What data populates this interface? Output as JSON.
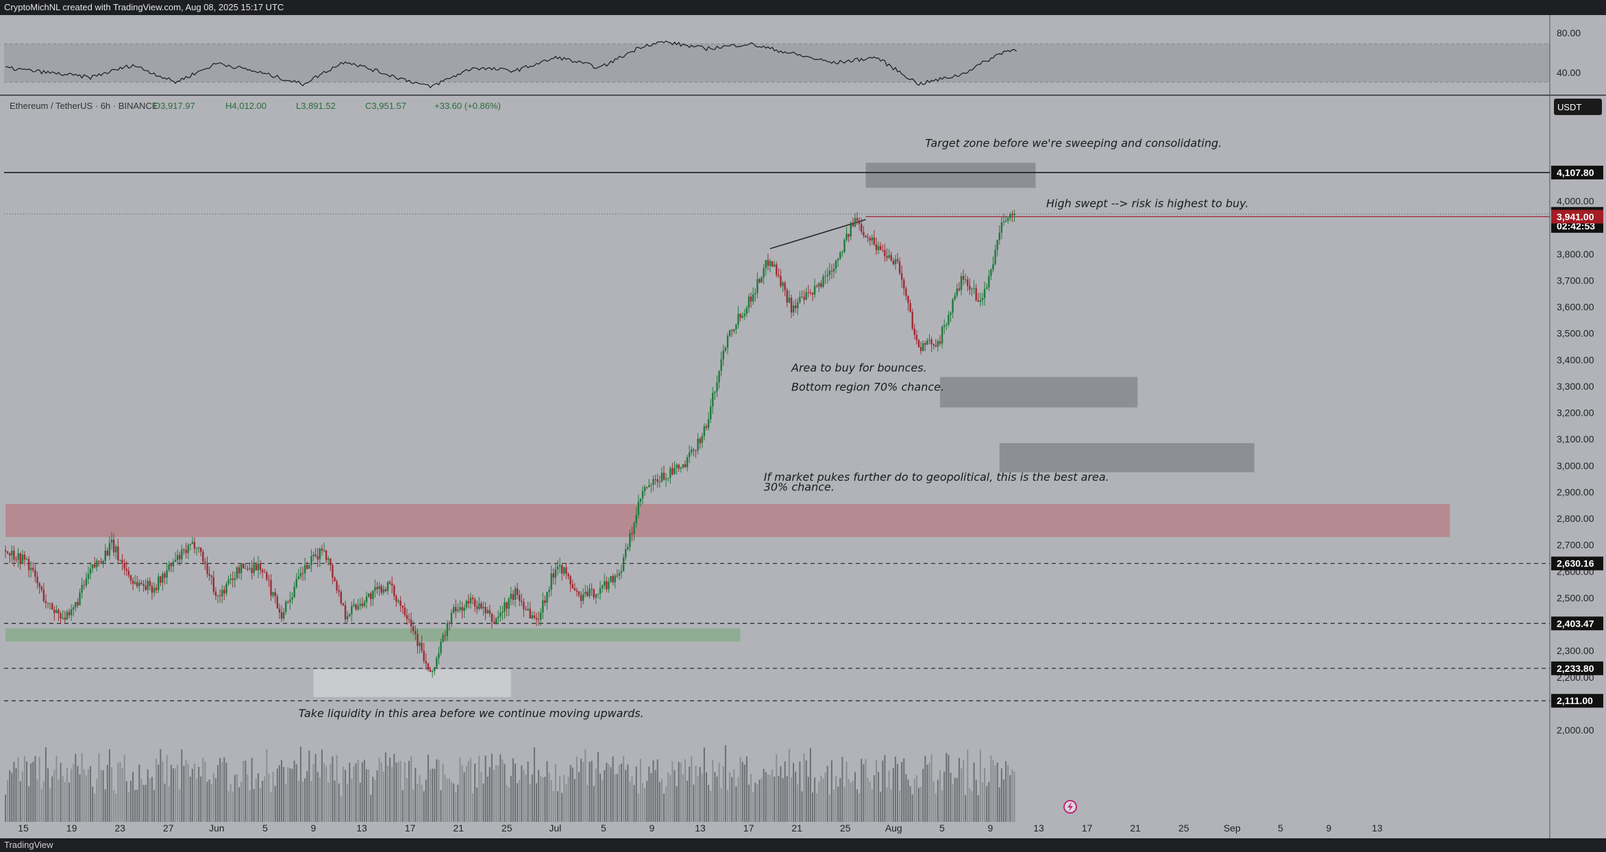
{
  "header": {
    "text": "CryptoMichNL created with TradingView.com, Aug 08, 2025 15:17 UTC"
  },
  "footer": {
    "logo_text": "TradingView"
  },
  "legend": {
    "symbol": "Ethereum / TetherUS · 6h · BINANCE",
    "open": "O3,917.97",
    "high": "H4,012.00",
    "low": "L3,891.52",
    "close": "C3,951.57",
    "change": "+33.60 (+0.86%)"
  },
  "currency_button": "USDT",
  "rsi": {
    "tick_80": "80.00",
    "tick_40": "40.00"
  },
  "chart_data": {
    "type": "candlestick",
    "symbol": "ETHUSDT",
    "interval": "6h",
    "y_ticks": [
      "4,000.00",
      "3,900.00",
      "3,800.00",
      "3,700.00",
      "3,600.00",
      "3,500.00",
      "3,400.00",
      "3,300.00",
      "3,200.00",
      "3,100.00",
      "3,000.00",
      "2,900.00",
      "2,800.00",
      "2,700.00",
      "2,600.00",
      "2,500.00",
      "2,300.00",
      "2,200.00",
      "2,000.00"
    ],
    "x_ticks": [
      "15",
      "19",
      "23",
      "27",
      "Jun",
      "5",
      "9",
      "13",
      "17",
      "21",
      "25",
      "Jul",
      "5",
      "9",
      "13",
      "17",
      "21",
      "25",
      "Aug",
      "5",
      "9",
      "13",
      "17",
      "21",
      "25",
      "Sep",
      "5",
      "9",
      "13"
    ],
    "ylim": [
      1920,
      4250
    ],
    "price_labels": [
      {
        "text": "4,107.80",
        "value": 4107.8,
        "style": "black"
      },
      {
        "text": "3,951.57",
        "value": 3951.57,
        "style": "black"
      },
      {
        "text": "02:42:53",
        "value": 3906,
        "style": "black"
      },
      {
        "text": "3,941.00",
        "value": 3941.0,
        "style": "red"
      },
      {
        "text": "2,630.16",
        "value": 2630.16,
        "style": "black"
      },
      {
        "text": "2,403.47",
        "value": 2403.47,
        "style": "black"
      },
      {
        "text": "2,233.80",
        "value": 2233.8,
        "style": "black"
      },
      {
        "text": "2,111.00",
        "value": 2111.0,
        "style": "black"
      }
    ],
    "close_anchors": [
      [
        0,
        2680
      ],
      [
        10,
        2640
      ],
      [
        20,
        2470
      ],
      [
        30,
        2420
      ],
      [
        40,
        2600
      ],
      [
        50,
        2700
      ],
      [
        60,
        2560
      ],
      [
        70,
        2540
      ],
      [
        80,
        2640
      ],
      [
        90,
        2710
      ],
      [
        100,
        2500
      ],
      [
        110,
        2610
      ],
      [
        120,
        2620
      ],
      [
        130,
        2440
      ],
      [
        140,
        2600
      ],
      [
        150,
        2690
      ],
      [
        160,
        2440
      ],
      [
        170,
        2500
      ],
      [
        180,
        2550
      ],
      [
        190,
        2430
      ],
      [
        200,
        2200
      ],
      [
        210,
        2440
      ],
      [
        220,
        2490
      ],
      [
        230,
        2410
      ],
      [
        240,
        2520
      ],
      [
        250,
        2410
      ],
      [
        260,
        2640
      ],
      [
        270,
        2500
      ],
      [
        280,
        2530
      ],
      [
        290,
        2610
      ],
      [
        300,
        2900
      ],
      [
        310,
        2960
      ],
      [
        320,
        3000
      ],
      [
        330,
        3150
      ],
      [
        340,
        3500
      ],
      [
        350,
        3620
      ],
      [
        360,
        3790
      ],
      [
        370,
        3600
      ],
      [
        380,
        3650
      ],
      [
        390,
        3760
      ],
      [
        400,
        3930
      ],
      [
        410,
        3830
      ],
      [
        420,
        3770
      ],
      [
        430,
        3440
      ],
      [
        440,
        3480
      ],
      [
        450,
        3700
      ],
      [
        460,
        3620
      ],
      [
        470,
        3930
      ],
      [
        475,
        3951.57
      ]
    ],
    "volume_shape": [
      0.35,
      0.45,
      0.3,
      0.6,
      0.5,
      0.4,
      0.55,
      0.35,
      0.3,
      0.7
    ],
    "rsi_anchors": [
      [
        0,
        55
      ],
      [
        20,
        50
      ],
      [
        40,
        45
      ],
      [
        60,
        58
      ],
      [
        80,
        40
      ],
      [
        100,
        60
      ],
      [
        120,
        50
      ],
      [
        140,
        38
      ],
      [
        160,
        62
      ],
      [
        180,
        48
      ],
      [
        200,
        35
      ],
      [
        220,
        55
      ],
      [
        240,
        52
      ],
      [
        260,
        66
      ],
      [
        280,
        55
      ],
      [
        300,
        78
      ],
      [
        310,
        82
      ],
      [
        330,
        75
      ],
      [
        350,
        80
      ],
      [
        370,
        70
      ],
      [
        390,
        60
      ],
      [
        410,
        66
      ],
      [
        430,
        38
      ],
      [
        450,
        48
      ],
      [
        470,
        72
      ],
      [
        476,
        74
      ]
    ],
    "lines": [
      {
        "type": "horizontal",
        "value": 4107.8,
        "style": "solid-black"
      },
      {
        "type": "horizontal",
        "value": 2630.16,
        "style": "dashed"
      },
      {
        "type": "horizontal",
        "value": 2403.47,
        "style": "dashed"
      },
      {
        "type": "horizontal",
        "value": 2233.8,
        "style": "dashed"
      },
      {
        "type": "horizontal",
        "value": 2111.0,
        "style": "dashed"
      },
      {
        "type": "horizontal",
        "value": 3941.0,
        "style": "red"
      },
      {
        "type": "trendline",
        "from": [
          360,
          3820
        ],
        "to": [
          405,
          3930
        ]
      }
    ],
    "zones": [
      {
        "name": "target-zone",
        "x0": 405,
        "x1": 485,
        "y0": 4050,
        "y1": 4145,
        "color": "gray"
      },
      {
        "name": "bounce-zone",
        "x0": 440,
        "x1": 533,
        "y0": 3220,
        "y1": 3335,
        "color": "gray"
      },
      {
        "name": "bottom-zone",
        "x0": 468,
        "x1": 588,
        "y0": 2975,
        "y1": 3085,
        "color": "gray"
      },
      {
        "name": "resistance-band",
        "x0": 0,
        "x1": 680,
        "y0": 2730,
        "y1": 2855,
        "color": "red"
      },
      {
        "name": "support-band",
        "x0": 0,
        "x1": 346,
        "y0": 2335,
        "y1": 2385,
        "color": "green"
      },
      {
        "name": "liquidity-zone",
        "x0": 145,
        "x1": 238,
        "y0": 2125,
        "y1": 2230,
        "color": "white"
      }
    ],
    "annotations": [
      {
        "text": "Target zone before we're sweeping and consolidating.",
        "x": 433,
        "y": 4205
      },
      {
        "text": "High swept --> risk is highest to buy.",
        "x": 490,
        "y": 3977
      },
      {
        "text": "Area to buy for bounces.",
        "x": 370,
        "y": 3355
      },
      {
        "text": "Bottom region 70% chance.",
        "x": 370,
        "y": 3283
      },
      {
        "text": "If market pukes further do to geopolitical, this is the best area.",
        "x": 357,
        "y": 2943
      },
      {
        "text": "30% chance.",
        "x": 357,
        "y": 2905
      },
      {
        "text": "Take liquidity in this area before we continue moving upwards.",
        "x": 138,
        "y": 2050
      }
    ]
  }
}
